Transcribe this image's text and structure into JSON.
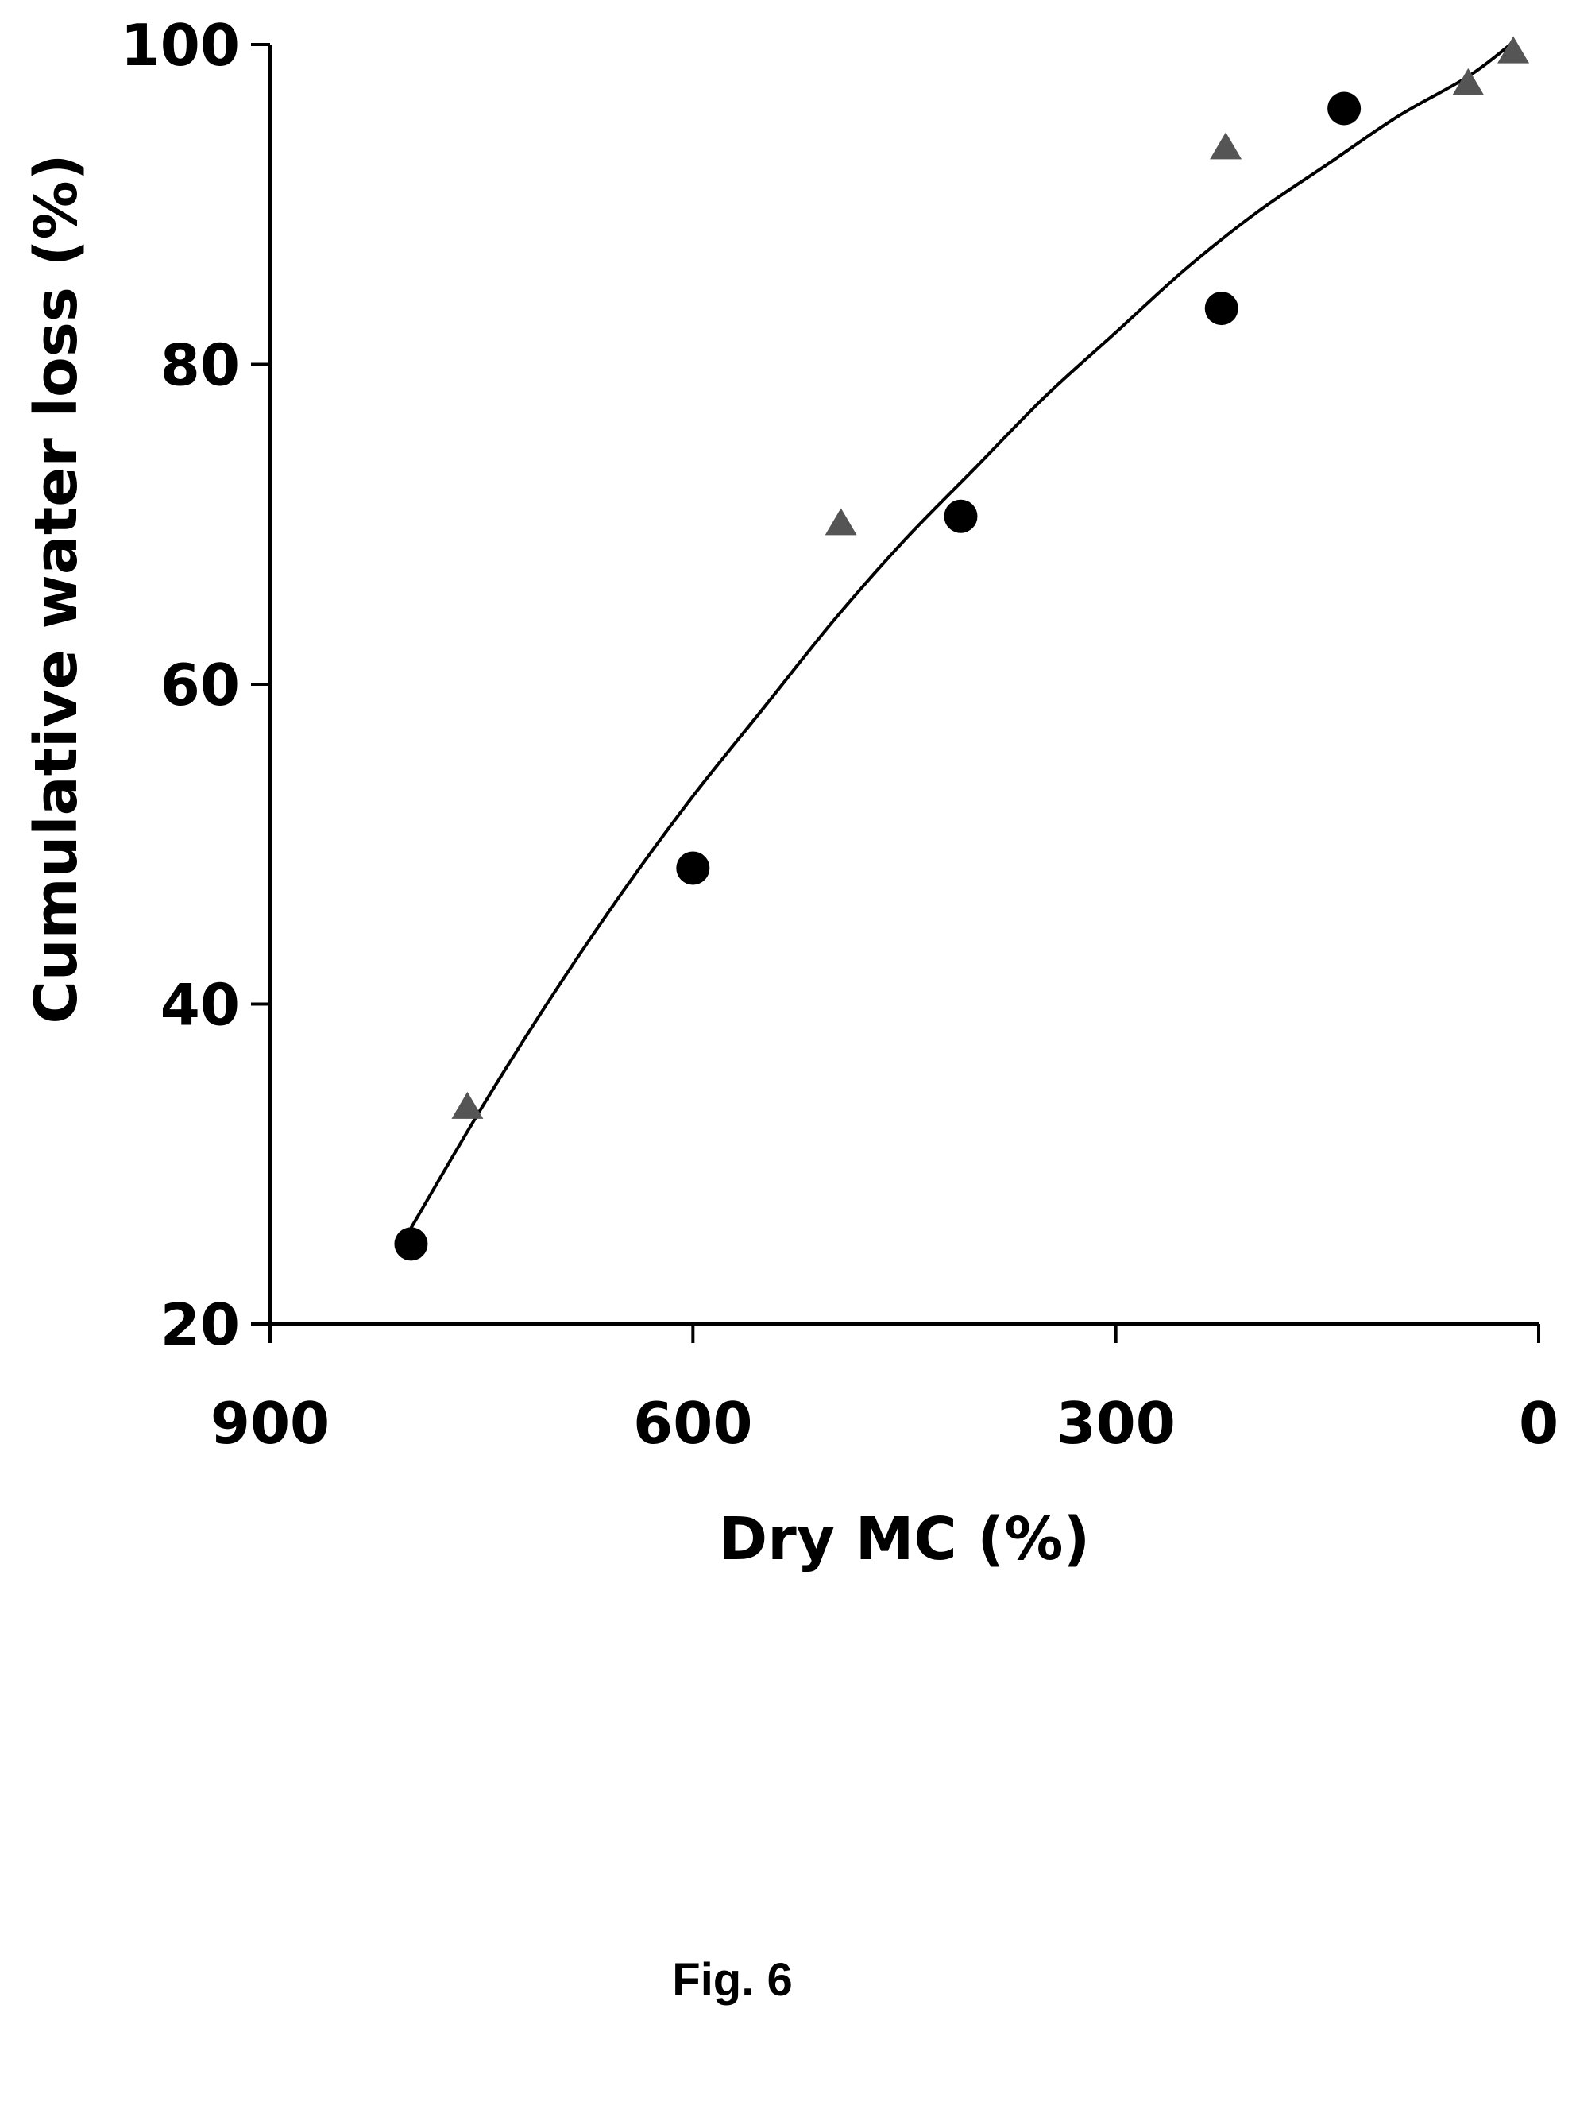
{
  "caption": "Fig. 6",
  "chart_data": {
    "type": "scatter",
    "title": "",
    "xlabel": "Dry MC (%)",
    "ylabel": "Cumulative water loss (%)",
    "xlim": [
      900,
      0
    ],
    "ylim": [
      20,
      100
    ],
    "x_reversed": true,
    "xticks": [
      900,
      600,
      300,
      0
    ],
    "yticks": [
      20,
      40,
      60,
      80,
      100
    ],
    "grid": false,
    "legend": "none",
    "colors": {
      "circle": "#000000",
      "triangle": "#555555",
      "curve": "#000000"
    },
    "series": [
      {
        "marker": "circle",
        "x": [
          800,
          600,
          410,
          225,
          138
        ],
        "y": [
          25,
          48.5,
          70.5,
          83.5,
          96
        ]
      },
      {
        "marker": "triangle",
        "x": [
          760,
          495,
          222,
          50,
          18
        ],
        "y": [
          33.5,
          70,
          93.5,
          97.5,
          99.5
        ]
      },
      {
        "marker": "line",
        "type": "fit",
        "x": [
          800,
          750,
          700,
          650,
          600,
          550,
          500,
          450,
          400,
          350,
          300,
          250,
          200,
          150,
          100,
          50,
          20
        ],
        "y": [
          26,
          33.5,
          40.5,
          47,
          53,
          58.5,
          64,
          69,
          73.5,
          78,
          82,
          86,
          89.5,
          92.5,
          95.5,
          98,
          100
        ]
      }
    ]
  }
}
